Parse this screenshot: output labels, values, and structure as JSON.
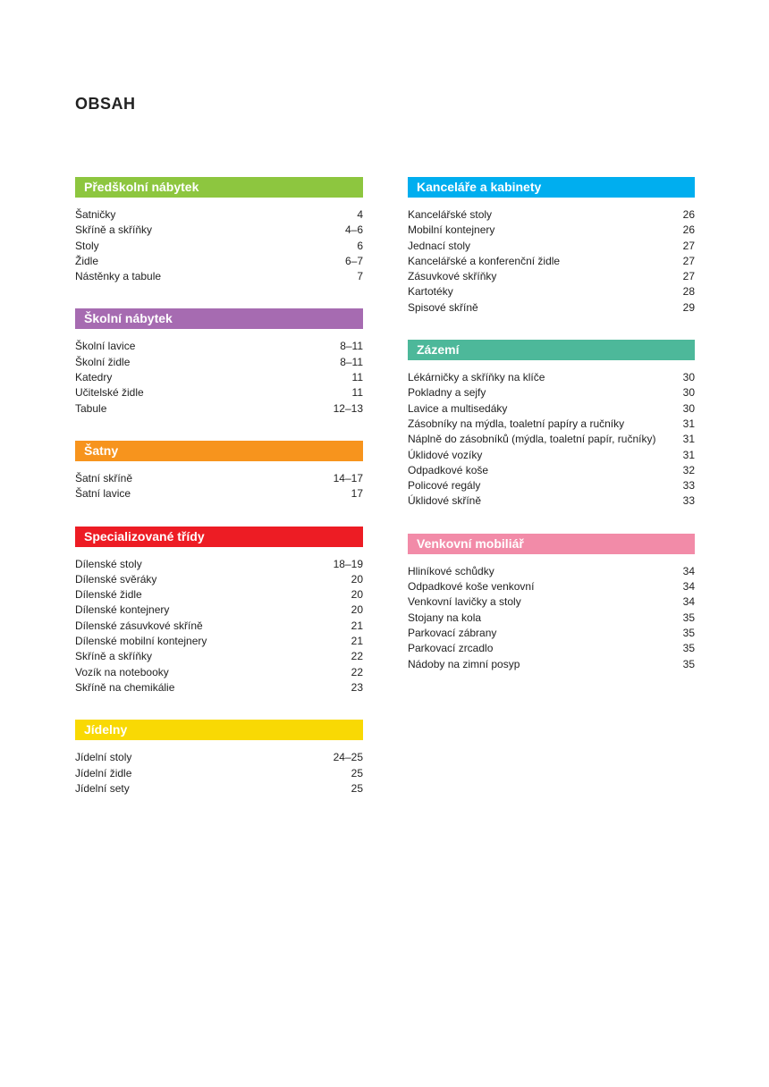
{
  "title": "OBSAH",
  "columns": [
    {
      "sections": [
        {
          "heading": "Předškolní nábytek",
          "items": [
            {
              "label": "Šatničky",
              "page": "4"
            },
            {
              "label": "Skříně a skříňky",
              "page": "4–6"
            },
            {
              "label": "Stoly",
              "page": "6"
            },
            {
              "label": "Židle",
              "page": "6–7"
            },
            {
              "label": "Nástěnky a tabule",
              "page": "7"
            }
          ]
        },
        {
          "heading": "Školní nábytek",
          "items": [
            {
              "label": "Školní lavice",
              "page": "8–11"
            },
            {
              "label": "Školní židle",
              "page": "8–11"
            },
            {
              "label": "Katedry",
              "page": "11"
            },
            {
              "label": "Učitelské židle",
              "page": "11"
            },
            {
              "label": "Tabule",
              "page": "12–13"
            }
          ]
        },
        {
          "heading": "Šatny",
          "items": [
            {
              "label": "Šatní skříně",
              "page": "14–17"
            },
            {
              "label": "Šatní lavice",
              "page": "17"
            }
          ]
        },
        {
          "heading": "Specializované třídy",
          "items": [
            {
              "label": "Dílenské stoly",
              "page": "18–19"
            },
            {
              "label": "Dílenské svěráky",
              "page": "20"
            },
            {
              "label": "Dílenské židle",
              "page": "20"
            },
            {
              "label": "Dílenské kontejnery",
              "page": "20"
            },
            {
              "label": "Dílenské zásuvkové skříně",
              "page": "21"
            },
            {
              "label": "Dílenské mobilní kontejnery",
              "page": "21"
            },
            {
              "label": "Skříně a skříňky",
              "page": "22"
            },
            {
              "label": "Vozík na notebooky",
              "page": "22"
            },
            {
              "label": "Skříně na chemikálie",
              "page": "23"
            }
          ]
        },
        {
          "heading": "Jídelny",
          "items": [
            {
              "label": "Jídelní stoly",
              "page": "24–25"
            },
            {
              "label": "Jídelní židle",
              "page": "25"
            },
            {
              "label": "Jídelní sety",
              "page": "25"
            }
          ]
        }
      ]
    },
    {
      "sections": [
        {
          "heading": "Kanceláře a kabinety",
          "items": [
            {
              "label": "Kancelářské stoly",
              "page": "26"
            },
            {
              "label": "Mobilní kontejnery",
              "page": "26"
            },
            {
              "label": "Jednací stoly",
              "page": "27"
            },
            {
              "label": "Kancelářské a konferenční židle",
              "page": "27"
            },
            {
              "label": "Zásuvkové skříňky",
              "page": "27"
            },
            {
              "label": "Kartotéky",
              "page": "28"
            },
            {
              "label": "Spisové skříně",
              "page": "29"
            }
          ]
        },
        {
          "heading": "Zázemí",
          "items": [
            {
              "label": "Lékárničky a skříňky na klíče",
              "page": "30"
            },
            {
              "label": "Pokladny a sejfy",
              "page": "30"
            },
            {
              "label": "Lavice a multisedáky",
              "page": "30"
            },
            {
              "label": "Zásobníky na mýdla, toaletní papíry a ručníky",
              "page": "31"
            },
            {
              "label": "Náplně do zásobníků (mýdla, toaletní papír, ručníky)",
              "page": "31"
            },
            {
              "label": "Úklidové vozíky",
              "page": "31"
            },
            {
              "label": "Odpadkové koše",
              "page": "32"
            },
            {
              "label": "Policové regály",
              "page": "33"
            },
            {
              "label": "Úklidové skříně",
              "page": "33"
            }
          ]
        },
        {
          "heading": "Venkovní mobiliář",
          "items": [
            {
              "label": "Hliníkové schůdky",
              "page": "34"
            },
            {
              "label": "Odpadkové koše venkovní",
              "page": "34"
            },
            {
              "label": "Venkovní lavičky a stoly",
              "page": "34"
            },
            {
              "label": "Stojany na kola",
              "page": "35"
            },
            {
              "label": "Parkovací zábrany",
              "page": "35"
            },
            {
              "label": "Parkovací zrcadlo",
              "page": "35"
            },
            {
              "label": "Nádoby na zimní posyp",
              "page": "35"
            }
          ]
        }
      ]
    }
  ]
}
